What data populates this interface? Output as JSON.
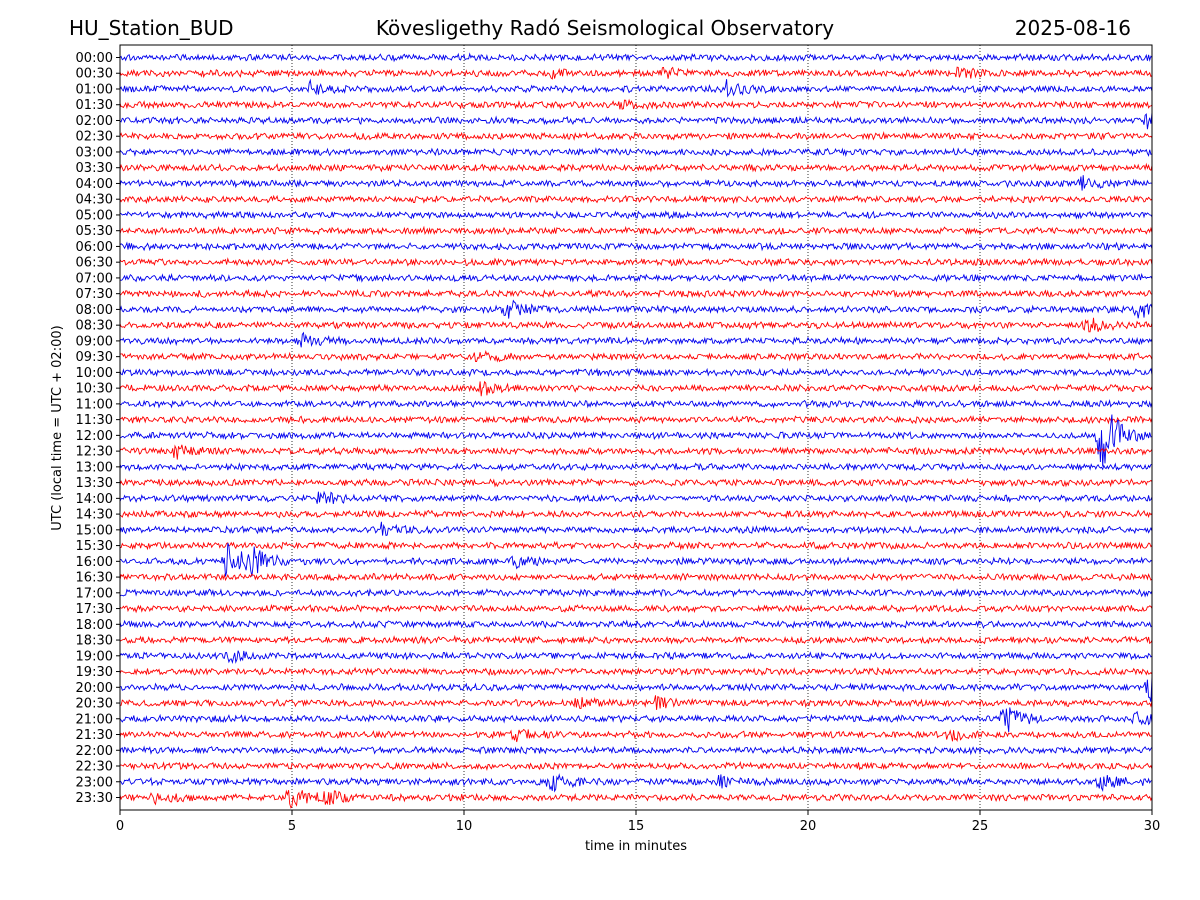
{
  "header": {
    "station": "HU_Station_BUD",
    "title": "Kövesligethy Radó Seismological Observatory",
    "date": "2025-08-16"
  },
  "chart_data": {
    "type": "line",
    "title": "Kövesligethy Radó Seismological Observatory",
    "xlabel": "time in minutes",
    "ylabel": "UTC (local time = UTC + 02:00)",
    "xlim": [
      0,
      30
    ],
    "xticks": [
      0,
      5,
      10,
      15,
      20,
      25,
      30
    ],
    "vertical_grid_at": [
      5,
      10,
      15,
      20,
      25
    ],
    "grid": "vertical dotted",
    "row_colors": [
      "#0000ee",
      "#ff0000"
    ],
    "rows": [
      "00:00",
      "00:30",
      "01:00",
      "01:30",
      "02:00",
      "02:30",
      "03:00",
      "03:30",
      "04:00",
      "04:30",
      "05:00",
      "05:30",
      "06:00",
      "06:30",
      "07:00",
      "07:30",
      "08:00",
      "08:30",
      "09:00",
      "09:30",
      "10:00",
      "10:30",
      "11:00",
      "11:30",
      "12:00",
      "12:30",
      "13:00",
      "13:30",
      "14:00",
      "14:30",
      "15:00",
      "15:30",
      "16:00",
      "16:30",
      "17:00",
      "17:30",
      "18:00",
      "18:30",
      "19:00",
      "19:30",
      "20:00",
      "20:30",
      "21:00",
      "21:30",
      "22:00",
      "22:30",
      "23:00",
      "23:30"
    ],
    "events": [
      {
        "row": "00:30",
        "t": 24.4,
        "amp": 0.5
      },
      {
        "row": "00:30",
        "t": 12.6,
        "amp": 0.35
      },
      {
        "row": "00:30",
        "t": 15.8,
        "amp": 0.35
      },
      {
        "row": "01:00",
        "t": 5.5,
        "amp": 0.5
      },
      {
        "row": "01:00",
        "t": 17.6,
        "amp": 0.7
      },
      {
        "row": "01:30",
        "t": 14.6,
        "amp": 0.4
      },
      {
        "row": "02:00",
        "t": 29.9,
        "amp": 0.8
      },
      {
        "row": "04:00",
        "t": 28.0,
        "amp": 0.6
      },
      {
        "row": "08:00",
        "t": 11.2,
        "amp": 0.9
      },
      {
        "row": "08:00",
        "t": 29.6,
        "amp": 0.7
      },
      {
        "row": "08:30",
        "t": 28.1,
        "amp": 0.6
      },
      {
        "row": "09:00",
        "t": 5.3,
        "amp": 0.5
      },
      {
        "row": "09:30",
        "t": 10.4,
        "amp": 0.5
      },
      {
        "row": "10:30",
        "t": 10.5,
        "amp": 0.5
      },
      {
        "row": "12:00",
        "t": 28.5,
        "amp": 3.5
      },
      {
        "row": "12:30",
        "t": 1.6,
        "amp": 0.7
      },
      {
        "row": "14:00",
        "t": 5.8,
        "amp": 0.5
      },
      {
        "row": "15:00",
        "t": 7.6,
        "amp": 0.5
      },
      {
        "row": "16:00",
        "t": 3.1,
        "amp": 1.4
      },
      {
        "row": "16:00",
        "t": 3.8,
        "amp": 1.0
      },
      {
        "row": "16:00",
        "t": 11.4,
        "amp": 0.5
      },
      {
        "row": "19:00",
        "t": 3.2,
        "amp": 0.5
      },
      {
        "row": "20:00",
        "t": 29.9,
        "amp": 1.2
      },
      {
        "row": "20:30",
        "t": 13.3,
        "amp": 0.4
      },
      {
        "row": "20:30",
        "t": 15.6,
        "amp": 0.5
      },
      {
        "row": "21:00",
        "t": 25.7,
        "amp": 1.2
      },
      {
        "row": "21:00",
        "t": 29.5,
        "amp": 0.5
      },
      {
        "row": "21:30",
        "t": 11.5,
        "amp": 0.5
      },
      {
        "row": "21:30",
        "t": 24.0,
        "amp": 0.5
      },
      {
        "row": "23:00",
        "t": 12.5,
        "amp": 0.9
      },
      {
        "row": "23:00",
        "t": 17.4,
        "amp": 0.6
      },
      {
        "row": "23:00",
        "t": 28.5,
        "amp": 0.6
      },
      {
        "row": "23:30",
        "t": 4.9,
        "amp": 0.9
      },
      {
        "row": "23:30",
        "t": 6.0,
        "amp": 0.5
      },
      {
        "row": "23:30",
        "t": 1.0,
        "amp": 0.5
      }
    ]
  }
}
